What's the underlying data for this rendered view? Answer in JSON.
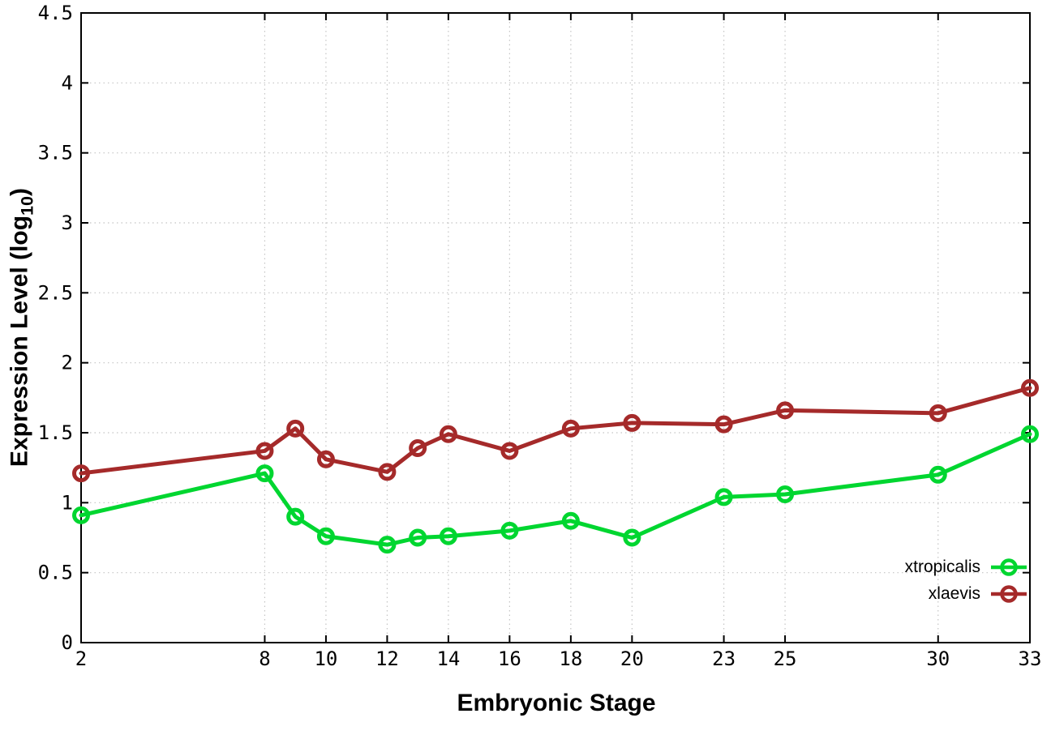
{
  "chart_data": {
    "type": "line",
    "xlabel": "Embryonic Stage",
    "ylabel": {
      "prefix": "Expression Level (log",
      "sub": "10",
      "suffix": ")"
    },
    "xlim": [
      2,
      33
    ],
    "ylim": [
      0,
      4.5
    ],
    "grid": true,
    "legend_position": "inside-bottom-right",
    "x": [
      2,
      8,
      9,
      10,
      12,
      13,
      14,
      16,
      18,
      20,
      23,
      25,
      30,
      33
    ],
    "x_ticks": [
      2,
      8,
      10,
      12,
      14,
      16,
      18,
      20,
      23,
      25,
      30,
      33
    ],
    "y_ticks": [
      0,
      0.5,
      1,
      1.5,
      2,
      2.5,
      3,
      3.5,
      4,
      4.5
    ],
    "y_tick_labels": [
      "0",
      "0.5",
      "1",
      "1.5",
      "2",
      "2.5",
      "3",
      "3.5",
      "4",
      "4.5"
    ],
    "series": [
      {
        "name": "xtropicalis",
        "color": "#00d630",
        "values": [
          0.91,
          1.21,
          0.9,
          0.76,
          0.7,
          0.75,
          0.76,
          0.8,
          0.87,
          0.75,
          1.04,
          1.06,
          1.2,
          1.49
        ]
      },
      {
        "name": "xlaevis",
        "color": "#a52a2a",
        "values": [
          1.21,
          1.37,
          1.53,
          1.31,
          1.22,
          1.39,
          1.49,
          1.37,
          1.53,
          1.57,
          1.56,
          1.66,
          1.64,
          1.82
        ]
      }
    ],
    "style": {
      "background": "#ffffff",
      "border_color": "#000000",
      "grid_color": "#c4c4c4",
      "tick_label_color": "#000000"
    }
  }
}
